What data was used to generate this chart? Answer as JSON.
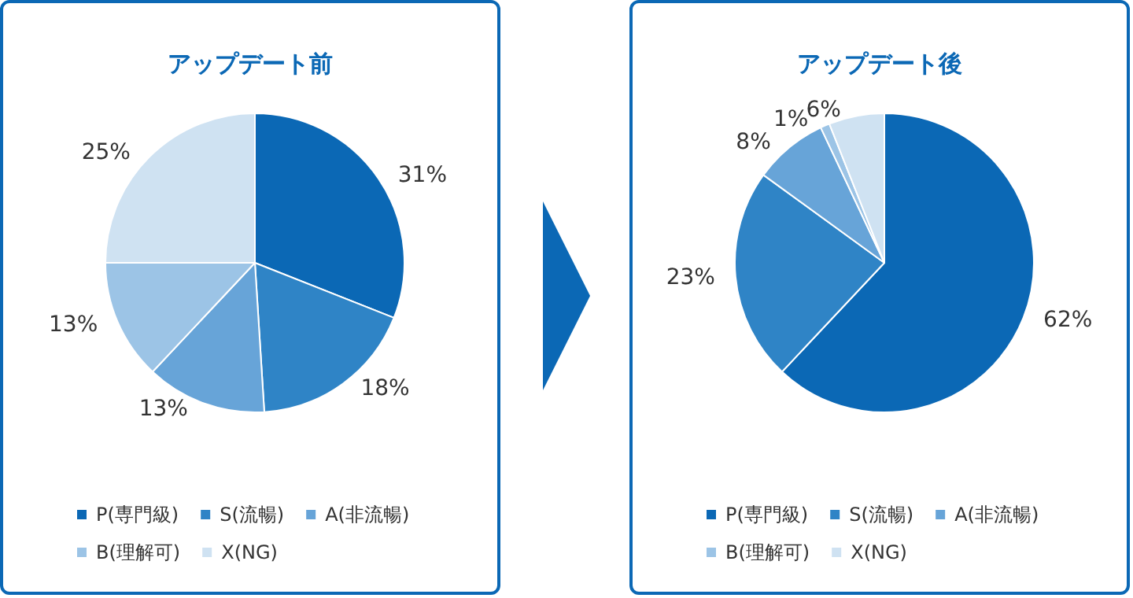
{
  "chart_data": [
    {
      "type": "pie",
      "title": "アップデート前",
      "categories": [
        "P(専門級)",
        "S(流暢)",
        "A(非流暢)",
        "B(理解可)",
        "X(NG)"
      ],
      "values": [
        31,
        18,
        13,
        13,
        25
      ],
      "value_labels": [
        "31%",
        "18%",
        "13%",
        "13%",
        "25%"
      ],
      "colors": [
        "#0b68b5",
        "#2f84c6",
        "#67a4d8",
        "#9cc4e6",
        "#cfe2f2"
      ],
      "legend": "bottom"
    },
    {
      "type": "pie",
      "title": "アップデート後",
      "categories": [
        "P(専門級)",
        "S(流暢)",
        "A(非流暢)",
        "B(理解可)",
        "X(NG)"
      ],
      "values": [
        62,
        23,
        8,
        1,
        6
      ],
      "value_labels": [
        "62%",
        "23%",
        "8%",
        "1%",
        "6%"
      ],
      "colors": [
        "#0b68b5",
        "#2f84c6",
        "#67a4d8",
        "#9cc4e6",
        "#cfe2f2"
      ],
      "legend": "bottom"
    }
  ]
}
